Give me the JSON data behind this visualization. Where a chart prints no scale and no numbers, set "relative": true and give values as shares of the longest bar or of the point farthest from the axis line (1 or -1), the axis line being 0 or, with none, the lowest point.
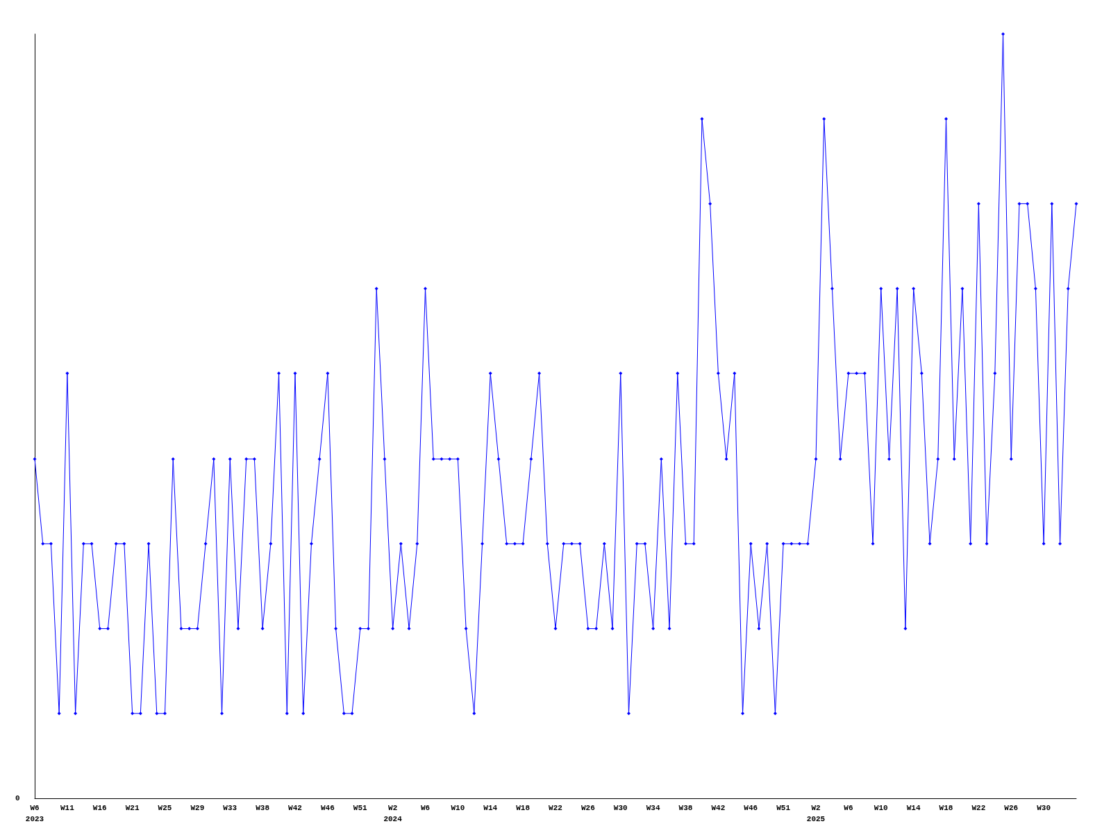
{
  "chart_data": {
    "type": "line",
    "relative": true,
    "marker": "diamond",
    "line_style": "solid",
    "categories": [
      "W6\n2023",
      null,
      null,
      null,
      "W11",
      null,
      null,
      null,
      "W16",
      null,
      null,
      null,
      "W21",
      null,
      null,
      null,
      "W25",
      null,
      null,
      null,
      "W29",
      null,
      null,
      null,
      "W33",
      null,
      null,
      null,
      "W38",
      null,
      null,
      null,
      "W42",
      null,
      null,
      null,
      "W46",
      null,
      null,
      null,
      "W51",
      null,
      null,
      null,
      "W2\n2024",
      null,
      null,
      null,
      "W6",
      null,
      null,
      null,
      "W10",
      null,
      null,
      null,
      "W14",
      null,
      null,
      null,
      "W18",
      null,
      null,
      null,
      "W22",
      null,
      null,
      null,
      "W26",
      null,
      null,
      null,
      "W30",
      null,
      null,
      null,
      "W34",
      null,
      null,
      null,
      "W38",
      null,
      null,
      null,
      "W42",
      null,
      null,
      null,
      "W46",
      null,
      null,
      null,
      "W51",
      null,
      null,
      null,
      "W2\n2025",
      null,
      null,
      null,
      "W6",
      null,
      null,
      null,
      "W10",
      null,
      null,
      null,
      "W14",
      null,
      null,
      null,
      "W18",
      null,
      null,
      null,
      "W22",
      null,
      null,
      null,
      "W26",
      null,
      null,
      null,
      "W30",
      null,
      null,
      null,
      null
    ],
    "series": [
      {
        "color": "#0000ff",
        "values": [
          0.444,
          0.333,
          0.333,
          0.111,
          0.556,
          0.111,
          0.333,
          0.333,
          0.222,
          0.222,
          0.333,
          0.333,
          0.111,
          0.111,
          0.333,
          0.111,
          0.111,
          0.444,
          0.222,
          0.222,
          0.222,
          0.333,
          0.444,
          0.111,
          0.444,
          0.222,
          0.444,
          0.444,
          0.222,
          0.333,
          0.556,
          0.111,
          0.556,
          0.111,
          0.333,
          0.444,
          0.556,
          0.222,
          0.111,
          0.111,
          0.222,
          0.222,
          0.667,
          0.444,
          0.222,
          0.333,
          0.222,
          0.333,
          0.667,
          0.444,
          0.444,
          0.444,
          0.444,
          0.222,
          0.111,
          0.333,
          0.556,
          0.444,
          0.333,
          0.333,
          0.333,
          0.444,
          0.556,
          0.333,
          0.222,
          0.333,
          0.333,
          0.333,
          0.222,
          0.222,
          0.333,
          0.222,
          0.556,
          0.111,
          0.333,
          0.333,
          0.222,
          0.444,
          0.222,
          0.556,
          0.333,
          0.333,
          0.889,
          0.778,
          0.556,
          0.444,
          0.556,
          0.111,
          0.333,
          0.222,
          0.333,
          0.111,
          0.333,
          0.333,
          0.333,
          0.333,
          0.444,
          0.889,
          0.667,
          0.444,
          0.556,
          0.556,
          0.556,
          0.333,
          0.667,
          0.444,
          0.667,
          0.222,
          0.667,
          0.556,
          0.333,
          0.444,
          0.889,
          0.444,
          0.667,
          0.333,
          0.778,
          0.333,
          0.556,
          1,
          0.444,
          0.778,
          0.778,
          0.667,
          0.333,
          0.778,
          0.333,
          0.667,
          0.778
        ]
      }
    ],
    "annotations": [
      "0"
    ]
  }
}
